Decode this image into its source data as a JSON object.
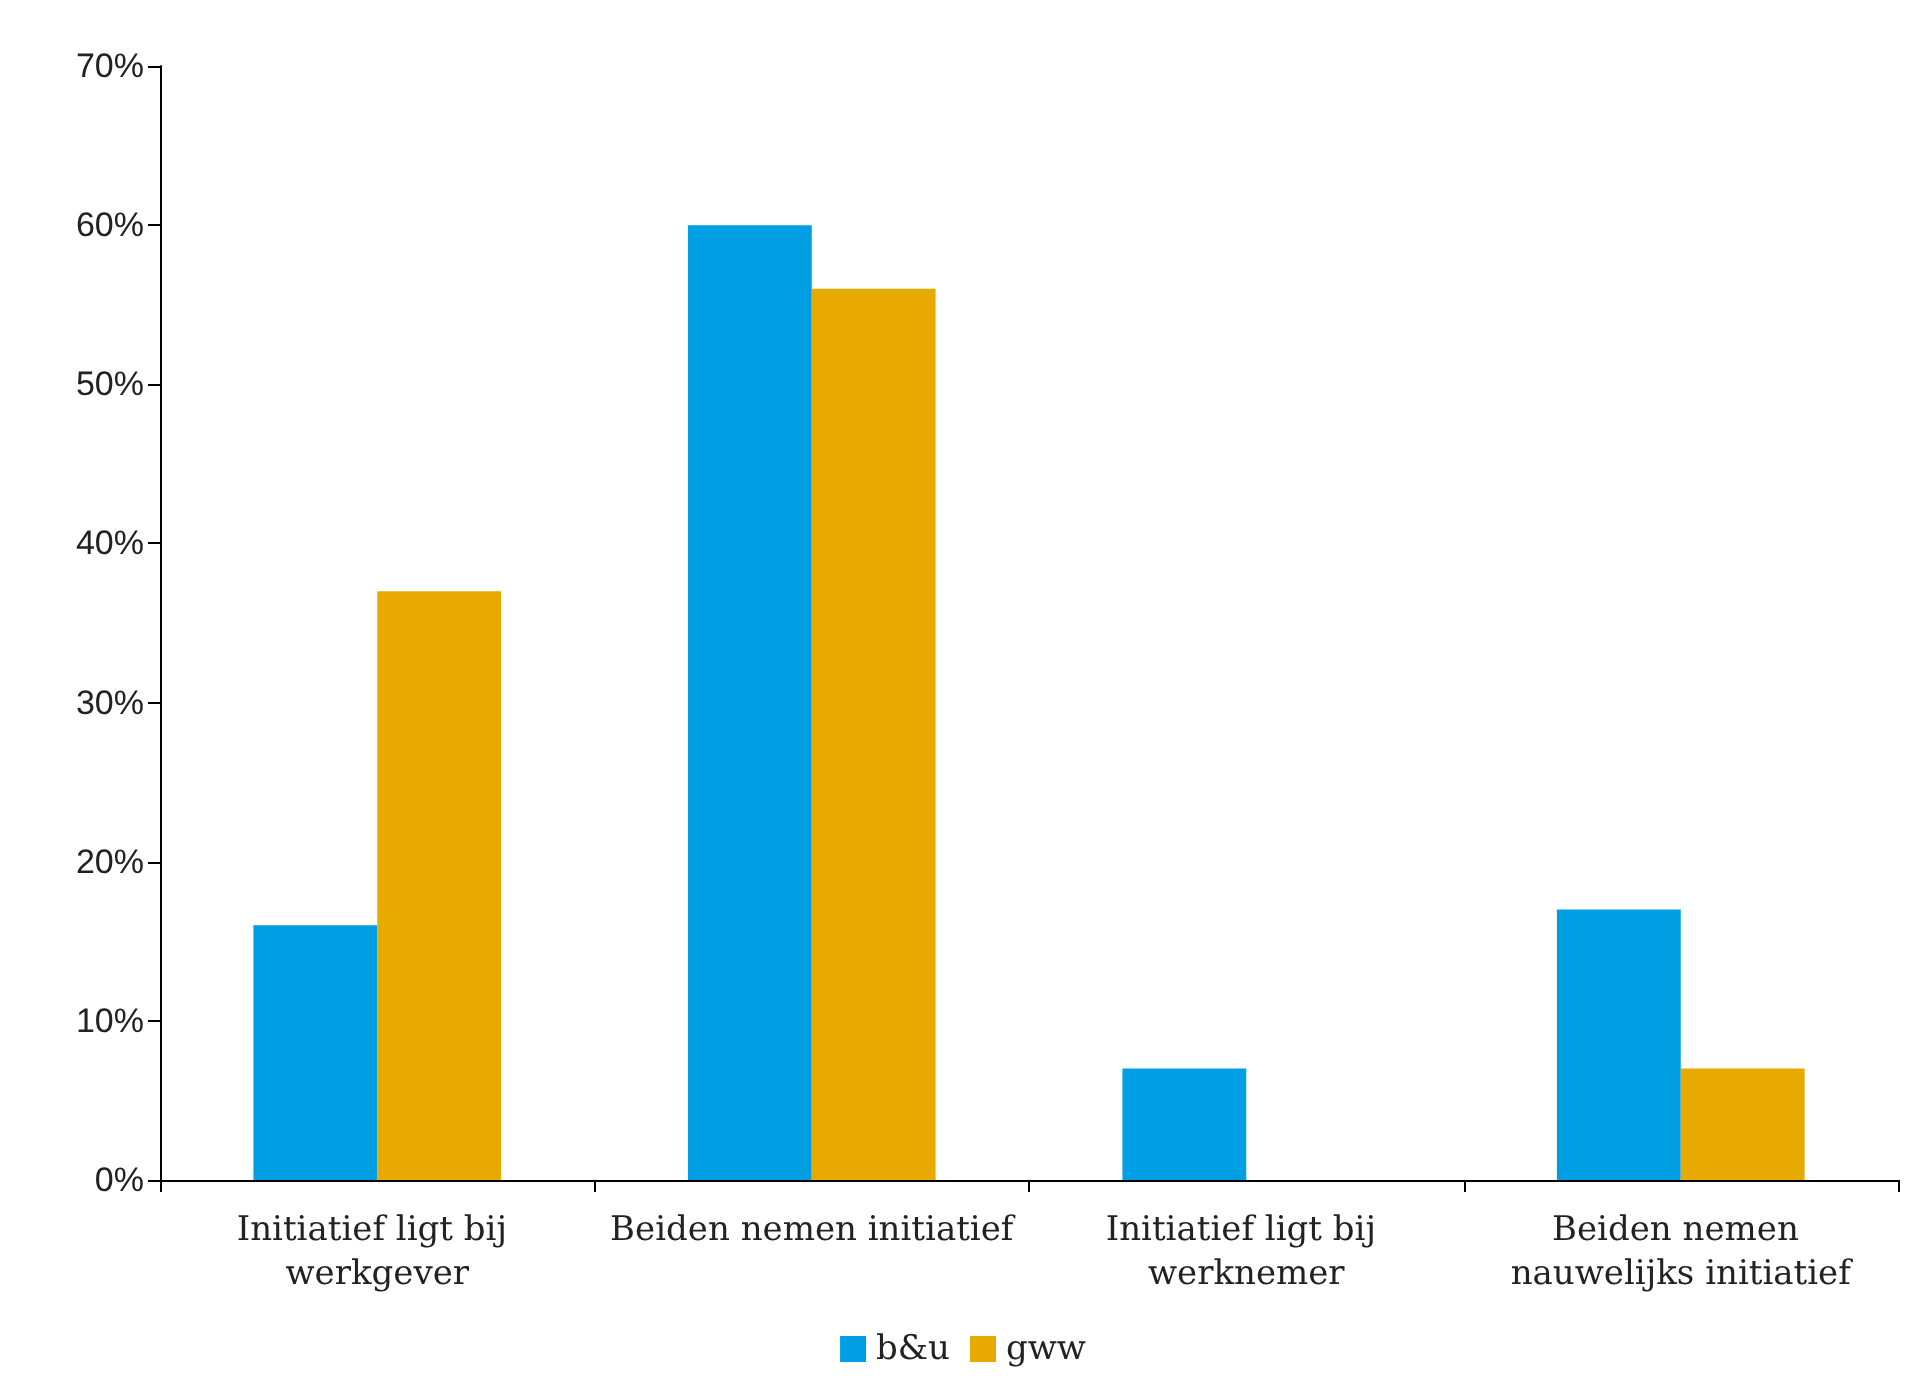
{
  "chart_data": {
    "type": "bar",
    "categories": [
      "Initiatief ligt bij werkgever",
      "Beiden nemen initiatief",
      "Initiatief ligt bij werknemer",
      "Beiden nemen nauwelijks initiatief"
    ],
    "series": [
      {
        "name": "b&u",
        "color": "#009fe3",
        "values": [
          16,
          60,
          7,
          17
        ]
      },
      {
        "name": "gww",
        "color": "#e8aa00",
        "values": [
          37,
          56,
          null,
          7
        ]
      }
    ],
    "ylim": [
      0,
      70
    ],
    "yticks": [
      {
        "value": 0,
        "label": "0%"
      },
      {
        "value": 10,
        "label": "10%"
      },
      {
        "value": 20,
        "label": "20%"
      },
      {
        "value": 30,
        "label": "30%"
      },
      {
        "value": 40,
        "label": "40%"
      },
      {
        "value": 50,
        "label": "50%"
      },
      {
        "value": 60,
        "label": "60%"
      },
      {
        "value": 70,
        "label": "70%"
      }
    ],
    "grid": false,
    "legend": "bottom"
  }
}
